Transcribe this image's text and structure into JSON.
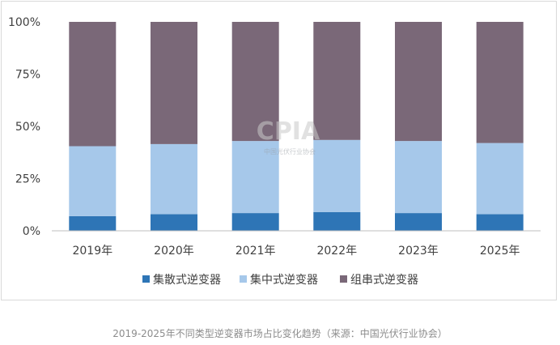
{
  "chart_data": {
    "type": "bar",
    "stacked": true,
    "title": "",
    "xlabel": "",
    "ylabel": "",
    "categories": [
      "2019年",
      "2020年",
      "2021年",
      "2022年",
      "2023年",
      "2025年"
    ],
    "yticks": [
      "0%",
      "25%",
      "50%",
      "75%",
      "100%"
    ],
    "ylim": [
      0,
      100
    ],
    "grid": false,
    "legend_position": "bottom",
    "series": [
      {
        "name": "集散式逆变器",
        "color": "#2e75b6",
        "values": [
          7,
          8,
          8.5,
          9,
          8.5,
          8
        ]
      },
      {
        "name": "集中式逆变器",
        "color": "#a6c8ea",
        "values": [
          33.5,
          33.5,
          34.5,
          34.5,
          34.5,
          34
        ]
      },
      {
        "name": "组串式逆变器",
        "color": "#7a6878",
        "values": [
          59.5,
          58.5,
          57,
          56.5,
          57,
          58
        ]
      }
    ]
  },
  "watermark": {
    "text": "CPIA",
    "subtext": "中国光伏行业协会"
  },
  "caption": "2019-2025年不同类型逆变器市场占比变化趋势（来源：中国光伏行业协会）"
}
